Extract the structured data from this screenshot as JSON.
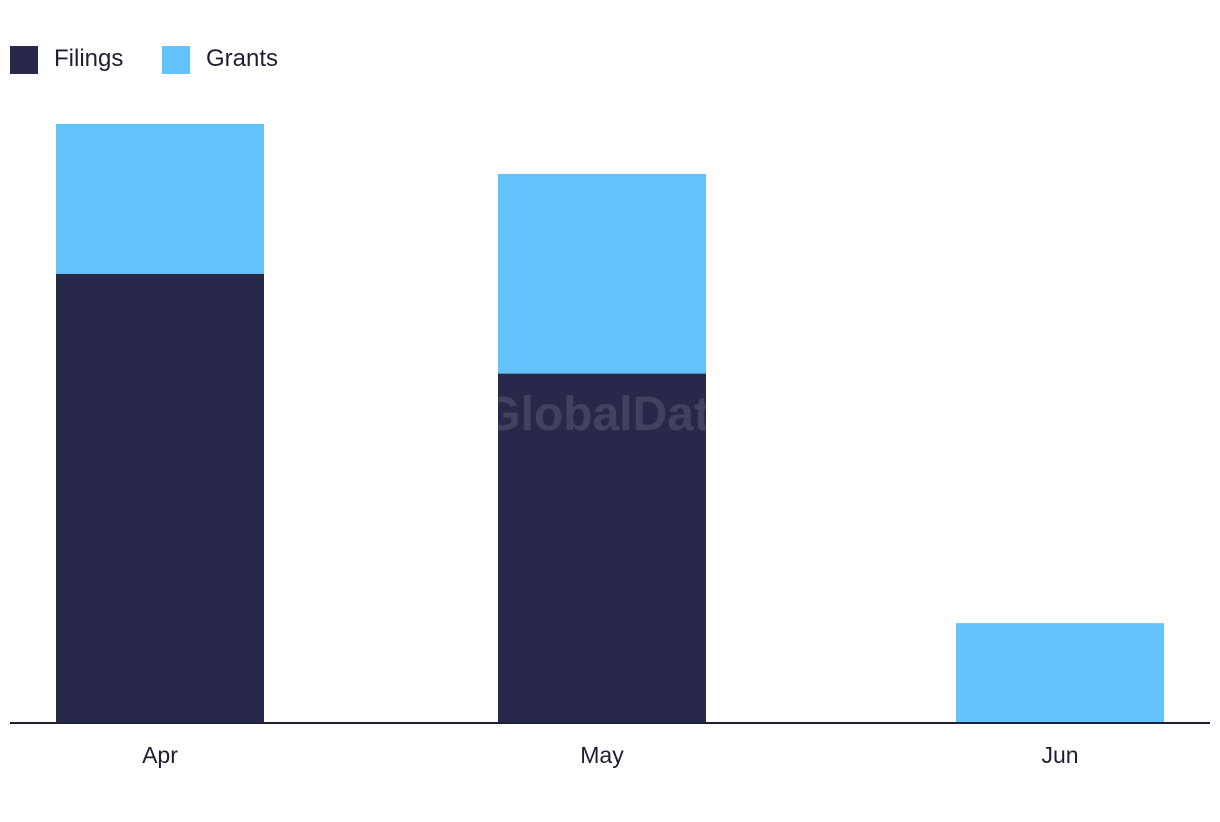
{
  "chart_data": {
    "type": "bar",
    "stacked": true,
    "categories": [
      "Apr",
      "May",
      "Jun"
    ],
    "series": [
      {
        "name": "Filings",
        "color": "#27284a",
        "values": [
          9,
          7,
          0
        ]
      },
      {
        "name": "Grants",
        "color": "#63c2fa",
        "values": [
          3,
          4,
          2
        ]
      }
    ],
    "ylim": [
      0,
      12
    ],
    "legend_position": "top-left",
    "grid": false,
    "watermark": "GlobalData"
  }
}
